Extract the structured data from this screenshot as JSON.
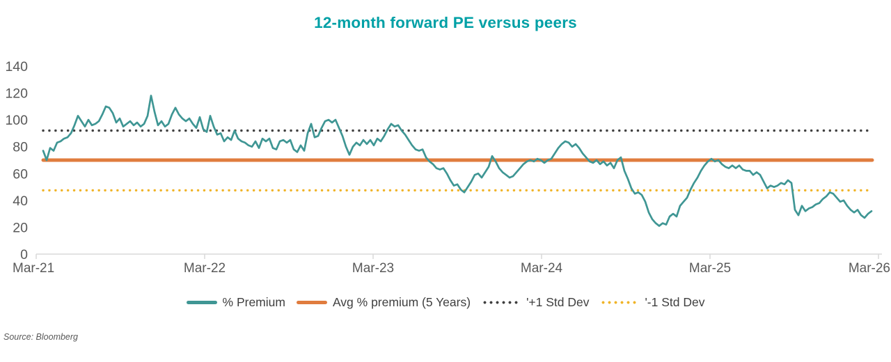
{
  "title": "12-month forward PE versus peers",
  "source": "Source: Bloomberg",
  "colors": {
    "title": "#00A0A6",
    "premium": "#3F9694",
    "avg": "#E07C3E",
    "plus_std": "#404040",
    "minus_std": "#F0B429",
    "axis_text": "#595959",
    "axis_line": "#D9D9D9",
    "legend_text": "#404040"
  },
  "legend": [
    {
      "label": "% Premium",
      "swatch": "line",
      "color_key": "premium"
    },
    {
      "label": "Avg % premium (5 Years)",
      "swatch": "line",
      "color_key": "avg"
    },
    {
      "label": "'+1 Std Dev",
      "swatch": "dots",
      "color_key": "plus_std"
    },
    {
      "label": "'-1 Std Dev",
      "swatch": "dots",
      "color_key": "minus_std"
    }
  ],
  "chart_data": {
    "type": "line",
    "title": "12-month forward PE versus peers",
    "xlabel": "",
    "ylabel": "",
    "ylim": [
      0,
      140
    ],
    "yticks": [
      "0",
      "20",
      "40",
      "60",
      "80",
      "100",
      "120",
      "140"
    ],
    "xticks": [
      "Mar-21",
      "Mar-22",
      "Mar-23",
      "Mar-24",
      "Mar-25",
      "Mar-26"
    ],
    "grid": false,
    "legend_position": "bottom",
    "reference_lines": {
      "avg_5y": 70,
      "plus_1_std": 92,
      "minus_1_std": 47.5
    },
    "series": [
      {
        "name": "% Premium",
        "x_start": "Mar-21",
        "x_step_months": 0.25,
        "values": [
          77,
          70,
          79,
          77,
          83,
          84,
          86,
          87,
          90,
          96,
          103,
          99,
          95,
          100,
          96,
          97,
          99,
          104,
          110,
          109,
          105,
          98,
          101,
          95,
          97,
          99,
          96,
          98,
          95,
          97,
          103,
          118,
          106,
          96,
          99,
          95,
          97,
          104,
          109,
          104,
          101,
          99,
          101,
          97,
          94,
          102,
          93,
          91,
          103,
          95,
          89,
          90,
          84,
          87,
          85,
          92,
          86,
          84,
          83,
          81,
          80,
          84,
          79,
          86,
          84,
          86,
          79,
          78,
          84,
          85,
          83,
          85,
          78,
          76,
          81,
          77,
          90,
          97,
          87,
          88,
          94,
          99,
          100,
          98,
          100,
          94,
          88,
          80,
          74,
          80,
          83,
          81,
          85,
          82,
          85,
          81,
          86,
          84,
          88,
          93,
          97,
          95,
          96,
          92,
          89,
          85,
          81,
          78,
          77,
          78,
          72,
          69,
          67,
          64,
          63,
          64,
          60,
          55,
          51,
          52,
          48,
          46,
          50,
          54,
          59,
          60,
          57,
          61,
          65,
          73,
          69,
          64,
          61,
          59,
          57,
          58,
          61,
          64,
          67,
          69,
          70,
          69,
          71,
          70,
          68,
          70,
          71,
          75,
          79,
          82,
          84,
          83,
          80,
          82,
          79,
          75,
          72,
          69,
          68,
          70,
          67,
          69,
          66,
          68,
          64,
          70,
          72,
          62,
          56,
          49,
          45,
          46,
          44,
          39,
          31,
          26,
          23,
          21,
          23,
          22,
          28,
          30,
          28,
          36,
          39,
          42,
          48,
          53,
          57,
          62,
          66,
          69,
          71,
          69,
          70,
          67,
          65,
          64,
          66,
          64,
          66,
          63,
          62,
          62,
          59,
          61,
          59,
          54,
          49,
          51,
          50,
          51,
          53,
          52,
          55,
          53,
          33,
          29,
          36,
          32,
          34,
          35,
          37,
          38,
          41,
          43,
          46,
          45,
          42,
          39,
          40,
          36,
          33,
          31,
          33,
          29,
          27,
          30,
          32
        ]
      },
      {
        "name": "Avg % premium (5 Years)",
        "constant": 70,
        "style": "solid"
      },
      {
        "name": "'+1 Std Dev",
        "constant": 92,
        "style": "dotted"
      },
      {
        "name": "'-1 Std Dev",
        "constant": 47.5,
        "style": "dotted"
      }
    ]
  }
}
